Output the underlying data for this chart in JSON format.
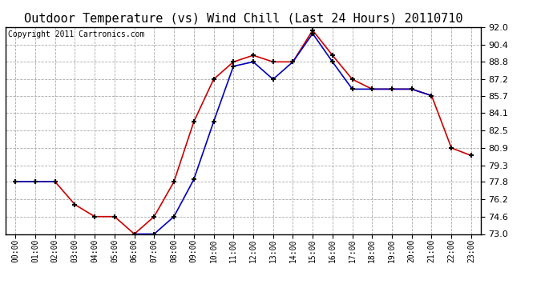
{
  "title": "Outdoor Temperature (vs) Wind Chill (Last 24 Hours) 20110710",
  "copyright": "Copyright 2011 Cartronics.com",
  "x_labels": [
    "00:00",
    "01:00",
    "02:00",
    "03:00",
    "04:00",
    "05:00",
    "06:00",
    "07:00",
    "08:00",
    "09:00",
    "10:00",
    "11:00",
    "12:00",
    "13:00",
    "14:00",
    "15:00",
    "16:00",
    "17:00",
    "18:00",
    "19:00",
    "20:00",
    "21:00",
    "22:00",
    "23:00"
  ],
  "temp_red": [
    77.8,
    77.8,
    77.8,
    75.7,
    74.6,
    74.6,
    73.0,
    74.6,
    77.8,
    83.3,
    87.2,
    88.8,
    89.4,
    88.8,
    88.8,
    91.7,
    89.4,
    87.2,
    86.3,
    86.3,
    86.3,
    85.7,
    80.9,
    80.2
  ],
  "temp_blue": [
    77.8,
    77.8,
    77.8,
    null,
    null,
    null,
    73.0,
    73.0,
    74.6,
    78.0,
    83.3,
    88.4,
    88.8,
    87.2,
    88.8,
    91.4,
    88.8,
    86.3,
    86.3,
    86.3,
    86.3,
    85.7,
    null,
    80.2
  ],
  "ylim_min": 73.0,
  "ylim_max": 92.0,
  "yticks": [
    73.0,
    74.6,
    76.2,
    77.8,
    79.3,
    80.9,
    82.5,
    84.1,
    85.7,
    87.2,
    88.8,
    90.4,
    92.0
  ],
  "red_color": "#cc0000",
  "blue_color": "#0000bb",
  "bg_color": "#ffffff",
  "plot_bg_color": "#ffffff",
  "grid_color": "#aaaaaa",
  "title_fontsize": 11,
  "copyright_fontsize": 7
}
